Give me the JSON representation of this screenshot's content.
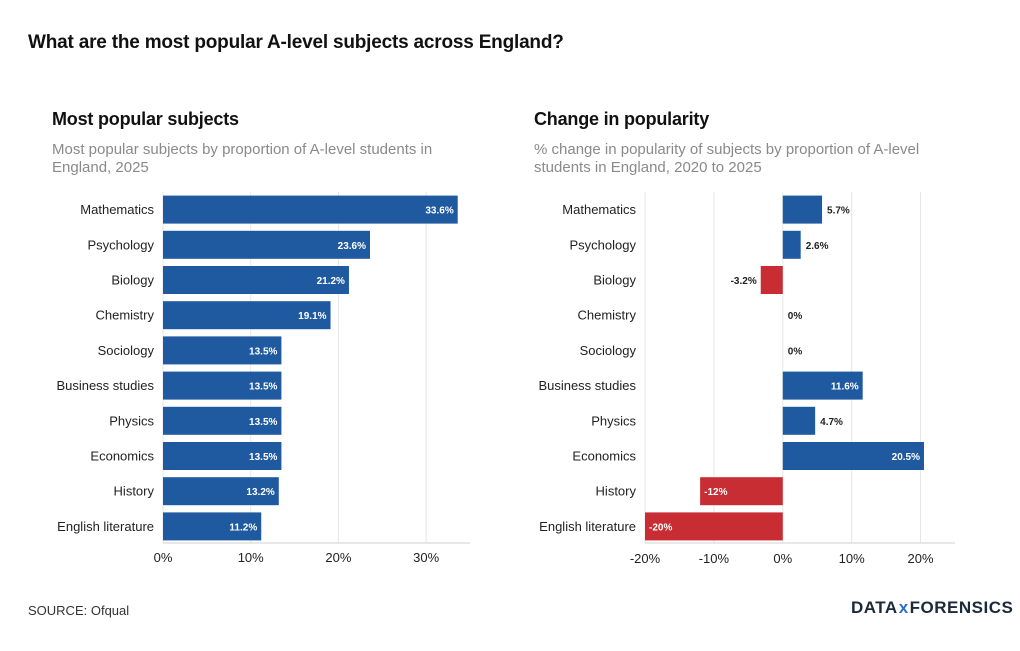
{
  "title": "What are the most popular A-level subjects across England?",
  "source": "SOURCE: Ofqual",
  "logo": {
    "left": "DATA",
    "x": "x",
    "right": "FORENSICS"
  },
  "colors": {
    "positive": "#1f5aa0",
    "negative": "#c72d33",
    "grid": "#e6e6e6"
  },
  "chart_data": [
    {
      "type": "bar",
      "orientation": "horizontal",
      "title": "Most popular subjects",
      "subtitle": "Most popular subjects by proportion of A-level students in England, 2025",
      "categories": [
        "Mathematics",
        "Psychology",
        "Biology",
        "Chemistry",
        "Sociology",
        "Business studies",
        "Physics",
        "Economics",
        "History",
        "English literature"
      ],
      "values": [
        33.6,
        23.6,
        21.2,
        19.1,
        13.5,
        13.5,
        13.5,
        13.5,
        13.2,
        11.2
      ],
      "value_labels": [
        "33.6%",
        "23.6%",
        "21.2%",
        "19.1%",
        "13.5%",
        "13.5%",
        "13.5%",
        "13.5%",
        "13.2%",
        "11.2%"
      ],
      "xlim": [
        0,
        35
      ],
      "xticks": [
        0,
        10,
        20,
        30
      ],
      "xtick_labels": [
        "0%",
        "10%",
        "20%",
        "30%"
      ],
      "xlabel": "",
      "ylabel": ""
    },
    {
      "type": "bar",
      "orientation": "horizontal",
      "title": "Change in popularity",
      "subtitle": "% change in popularity of subjects by proportion of A-level students in England, 2020 to 2025",
      "categories": [
        "Mathematics",
        "Psychology",
        "Biology",
        "Chemistry",
        "Sociology",
        "Business studies",
        "Physics",
        "Economics",
        "History",
        "English literature"
      ],
      "values": [
        5.7,
        2.6,
        -3.2,
        0,
        0,
        11.6,
        4.7,
        20.5,
        -12,
        -20
      ],
      "value_labels": [
        "5.7%",
        "2.6%",
        "-3.2%",
        "0%",
        "0%",
        "11.6%",
        "4.7%",
        "20.5%",
        "-12%",
        "-20%"
      ],
      "xlim": [
        -20,
        25
      ],
      "xticks": [
        -20,
        -10,
        0,
        10,
        20
      ],
      "xtick_labels": [
        "-20%",
        "-10%",
        "0%",
        "10%",
        "20%"
      ],
      "xlabel": "",
      "ylabel": ""
    }
  ]
}
